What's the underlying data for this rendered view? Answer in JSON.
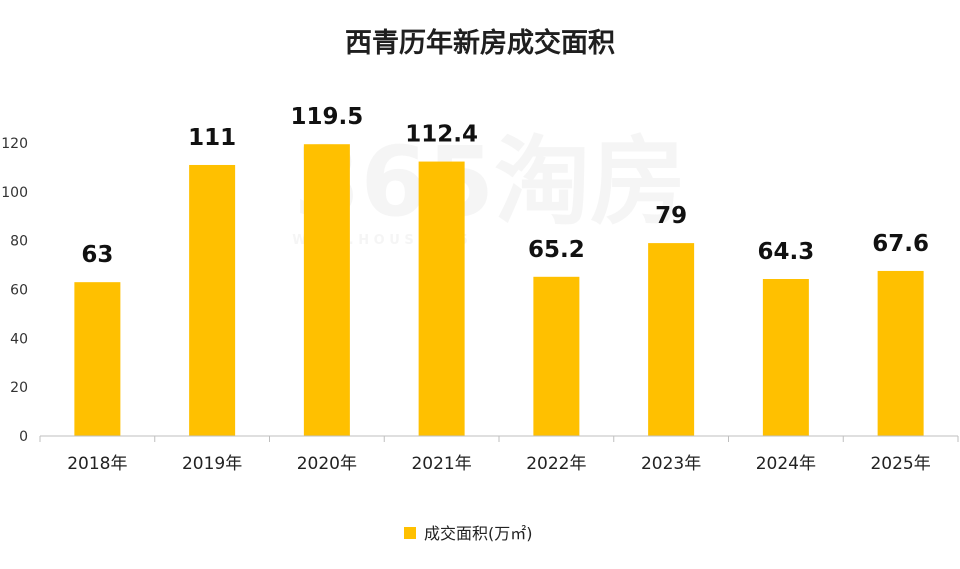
{
  "chart_data": {
    "type": "bar",
    "title": "西青历年新房成交面积",
    "categories": [
      "2018年",
      "2019年",
      "2020年",
      "2021年",
      "2022年",
      "2023年",
      "2024年",
      "2025年"
    ],
    "series": [
      {
        "name": "成交面积(万㎡)",
        "values": [
          63,
          111,
          119.5,
          112.4,
          65.2,
          79,
          64.3,
          67.6
        ],
        "color": "#FFC000"
      }
    ],
    "data_labels": [
      "63",
      "111",
      "119.5",
      "112.4",
      "65.2",
      "79",
      "64.3",
      "67.6"
    ],
    "xlabel": "",
    "ylabel": "",
    "ylim": [
      0,
      120
    ],
    "yticks": [
      0,
      20,
      40,
      60,
      80,
      100,
      120
    ],
    "grid": false,
    "legend": "bottom-center"
  },
  "watermark": {
    "main": "365淘房",
    "sub": "W W W . H O U S E 3 6 5"
  },
  "colors": {
    "bar": "#FFC000",
    "axis": "#bfbfbf"
  }
}
